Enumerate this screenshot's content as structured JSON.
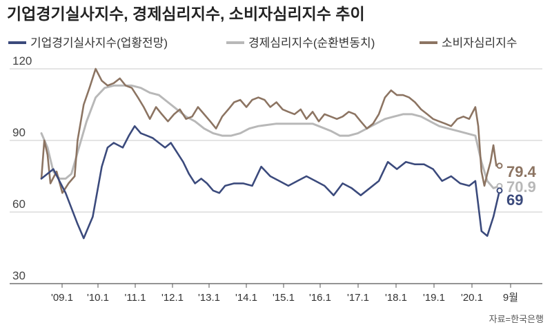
{
  "chart_data": {
    "type": "line",
    "title": "기업경기실사지수, 경제심리지수, 소비자심리지수 추이",
    "source": "자료=한국은행",
    "ylim": [
      30,
      120
    ],
    "yticks": [
      "120",
      "90",
      "60",
      "30"
    ],
    "xticks": [
      "'09.1",
      "'10.1",
      "'11.1",
      "'12.1",
      "'13.1",
      "'14.1",
      "'15.1",
      "'16.1",
      "'17.1",
      "'18.1",
      "'19.1",
      "'20.1",
      "9월"
    ],
    "grid": true,
    "legend": "top",
    "series": [
      {
        "name": "기업경기실사지수(업황전망)",
        "color": "#3b4a7c",
        "end_label": "69",
        "x": [
          2008.0,
          2008.33,
          2008.67,
          2009.0,
          2009.17,
          2009.42,
          2009.67,
          2009.83,
          2010.0,
          2010.25,
          2010.42,
          2010.58,
          2010.75,
          2010.92,
          2011.08,
          2011.25,
          2011.42,
          2011.58,
          2011.75,
          2011.92,
          2012.08,
          2012.25,
          2012.42,
          2012.58,
          2012.75,
          2012.92,
          2013.08,
          2013.33,
          2013.58,
          2013.83,
          2014.08,
          2014.33,
          2014.58,
          2014.83,
          2015.08,
          2015.33,
          2015.58,
          2015.83,
          2016.08,
          2016.33,
          2016.58,
          2016.83,
          2017.08,
          2017.33,
          2017.58,
          2017.83,
          2018.08,
          2018.33,
          2018.58,
          2018.83,
          2019.08,
          2019.33,
          2019.58,
          2019.83,
          2020.0,
          2020.17,
          2020.33,
          2020.5,
          2020.67
        ],
        "values": [
          74,
          78,
          68,
          55,
          49,
          58,
          79,
          87,
          89,
          87,
          92,
          96,
          93,
          92,
          91,
          89,
          87,
          89,
          85,
          81,
          76,
          72,
          74,
          72,
          69,
          68,
          71,
          72,
          72,
          71,
          79,
          75,
          73,
          71,
          73,
          75,
          73,
          71,
          67,
          72,
          70,
          67,
          70,
          73,
          81,
          78,
          81,
          80,
          80,
          78,
          73,
          75,
          72,
          71,
          73,
          52,
          50,
          58,
          69
        ]
      },
      {
        "name": "경제심리지수(순환변동치)",
        "color": "#b8b8b8",
        "end_label": "70.9",
        "x": [
          2008.0,
          2008.17,
          2008.33,
          2008.5,
          2008.67,
          2008.83,
          2009.0,
          2009.25,
          2009.5,
          2009.75,
          2010.0,
          2010.25,
          2010.5,
          2010.75,
          2011.0,
          2011.25,
          2011.5,
          2011.75,
          2012.0,
          2012.25,
          2012.5,
          2012.75,
          2013.0,
          2013.25,
          2013.5,
          2013.75,
          2014.0,
          2014.5,
          2015.0,
          2015.5,
          2016.0,
          2016.25,
          2016.5,
          2016.75,
          2017.0,
          2017.25,
          2017.5,
          2017.75,
          2018.0,
          2018.25,
          2018.5,
          2018.75,
          2019.0,
          2019.25,
          2019.5,
          2019.75,
          2020.0,
          2020.17,
          2020.33,
          2020.5,
          2020.67
        ],
        "values": [
          93,
          87,
          77,
          74,
          74,
          76,
          85,
          98,
          108,
          112,
          113,
          113,
          113,
          112,
          110,
          109,
          106,
          103,
          100,
          98,
          95,
          93,
          92,
          92,
          93,
          95,
          96,
          97,
          97,
          97,
          94,
          92,
          92,
          93,
          95,
          97,
          99,
          100,
          101,
          101,
          100,
          98,
          96,
          95,
          94,
          93,
          92,
          81,
          73,
          70,
          70.9
        ]
      },
      {
        "name": "소비자심리지수",
        "color": "#8c7462",
        "end_label": "79.4",
        "x": [
          2008.0,
          2008.08,
          2008.17,
          2008.25,
          2008.42,
          2008.58,
          2008.75,
          2008.92,
          2009.0,
          2009.17,
          2009.33,
          2009.5,
          2009.67,
          2009.83,
          2010.0,
          2010.17,
          2010.33,
          2010.5,
          2010.67,
          2010.83,
          2011.0,
          2011.17,
          2011.33,
          2011.5,
          2011.67,
          2011.83,
          2012.0,
          2012.17,
          2012.33,
          2012.5,
          2012.67,
          2012.83,
          2013.0,
          2013.17,
          2013.33,
          2013.5,
          2013.67,
          2013.83,
          2014.0,
          2014.17,
          2014.33,
          2014.5,
          2014.67,
          2014.83,
          2015.0,
          2015.17,
          2015.33,
          2015.5,
          2015.67,
          2015.83,
          2016.0,
          2016.17,
          2016.33,
          2016.5,
          2016.67,
          2016.83,
          2017.0,
          2017.17,
          2017.33,
          2017.5,
          2017.67,
          2017.83,
          2018.0,
          2018.17,
          2018.33,
          2018.5,
          2018.67,
          2018.83,
          2019.0,
          2019.17,
          2019.33,
          2019.5,
          2019.67,
          2019.83,
          2020.0,
          2020.08,
          2020.17,
          2020.25,
          2020.33,
          2020.42,
          2020.5,
          2020.58,
          2020.67
        ],
        "values": [
          74,
          90,
          84,
          72,
          77,
          68,
          72,
          75,
          90,
          105,
          112,
          120,
          115,
          113,
          114,
          116,
          113,
          112,
          108,
          104,
          99,
          104,
          101,
          98,
          101,
          103,
          99,
          100,
          104,
          101,
          98,
          95,
          100,
          103,
          106,
          107,
          104,
          107,
          108,
          107,
          104,
          106,
          103,
          102,
          101,
          103,
          99,
          102,
          98,
          101,
          100,
          99,
          100,
          102,
          101,
          98,
          95,
          97,
          101,
          108,
          111,
          109,
          109,
          108,
          106,
          103,
          101,
          99,
          98,
          97,
          96,
          99,
          100,
          99,
          104,
          96,
          77,
          71,
          76,
          81,
          88,
          79.4,
          79.4
        ]
      }
    ]
  }
}
